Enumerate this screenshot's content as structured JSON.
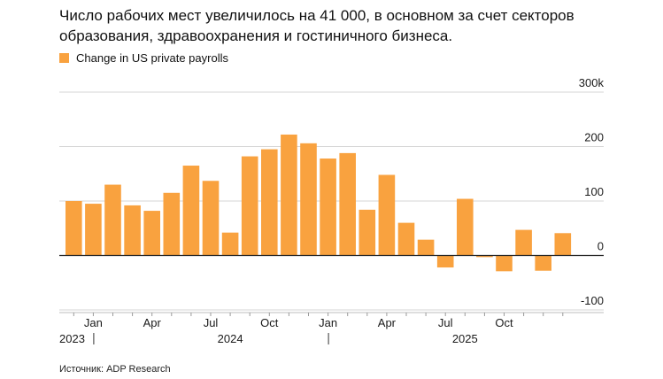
{
  "title": "Число рабочих мест увеличилось на 41 000, в основном за счет секторов образования, здравоохранения и гостиничного бизнеса.",
  "source": "Источник: ADP Research",
  "colors": {
    "bar": "#f9a23f",
    "grid": "#d6d6d6",
    "zero_line": "#222222"
  },
  "chart_data": {
    "type": "bar",
    "series": [
      {
        "name": "Change in US private payrolls",
        "values": [
          100,
          95,
          130,
          92,
          82,
          115,
          165,
          137,
          42,
          182,
          195,
          222,
          206,
          178,
          188,
          84,
          148,
          60,
          29,
          -22,
          104,
          -3,
          -29,
          47,
          -28,
          41
        ]
      }
    ],
    "x_ticks": [
      {
        "index": 1,
        "label": "Jan"
      },
      {
        "index": 4,
        "label": "Apr"
      },
      {
        "index": 7,
        "label": "Jul"
      },
      {
        "index": 10,
        "label": "Oct"
      },
      {
        "index": 13,
        "label": "Jan"
      },
      {
        "index": 16,
        "label": "Apr"
      },
      {
        "index": 19,
        "label": "Jul"
      },
      {
        "index": 22,
        "label": "Oct"
      }
    ],
    "years": [
      {
        "index": 0,
        "label": "2023"
      },
      {
        "index": 8,
        "label": "2024"
      },
      {
        "index": 20,
        "label": "2025"
      }
    ],
    "year_separators": [
      1.5,
      13.5
    ],
    "y_ticks": [
      {
        "value": 300,
        "label": "300k"
      },
      {
        "value": 200,
        "label": "200"
      },
      {
        "value": 100,
        "label": "100"
      },
      {
        "value": 0,
        "label": "0"
      },
      {
        "value": -100,
        "label": "-100"
      }
    ],
    "ylim": [
      -100,
      300
    ],
    "grid": true,
    "legend_position": "top-left"
  }
}
